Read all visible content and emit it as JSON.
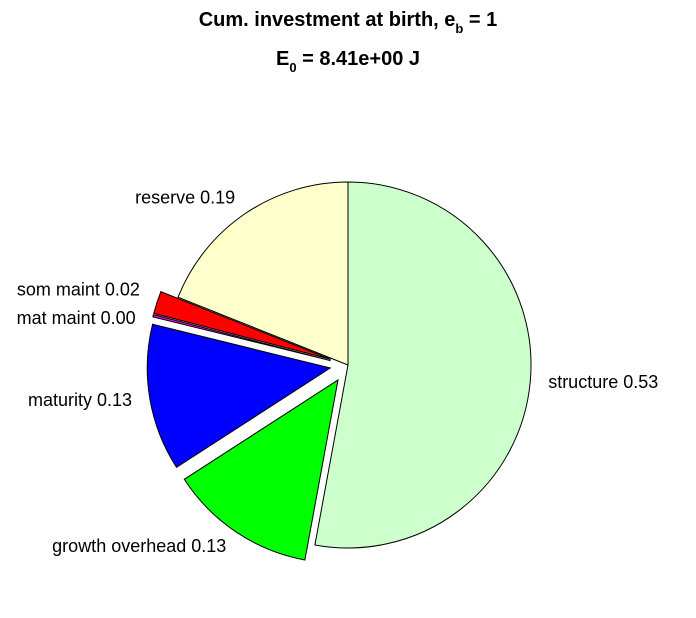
{
  "chart_data": {
    "type": "pie",
    "title_line1": {
      "text": "Cum. investment at birth, e",
      "subscript": "b",
      "suffix": " = 1"
    },
    "title_line2": {
      "text": "E",
      "subscript": "0",
      "suffix": " = 8.41e+00 J"
    },
    "slices": [
      {
        "name": "structure",
        "value": 0.53,
        "label": "structure 0.53",
        "color": "#CCFFCC",
        "exploded": false
      },
      {
        "name": "growth overhead",
        "value": 0.13,
        "label": "growth overhead 0.13",
        "color": "#00FF00",
        "exploded": true
      },
      {
        "name": "maturity",
        "value": 0.13,
        "label": "maturity 0.13",
        "color": "#0000FF",
        "exploded": true
      },
      {
        "name": "mat maint",
        "value": 0.002,
        "label": "mat maint 0.00",
        "color": "#FF00FF",
        "exploded": true
      },
      {
        "name": "som maint",
        "value": 0.02,
        "label": "som maint 0.02",
        "color": "#FF0000",
        "exploded": true
      },
      {
        "name": "reserve",
        "value": 0.19,
        "label": "reserve 0.19",
        "color": "#FFFFCC",
        "exploded": false
      }
    ]
  }
}
